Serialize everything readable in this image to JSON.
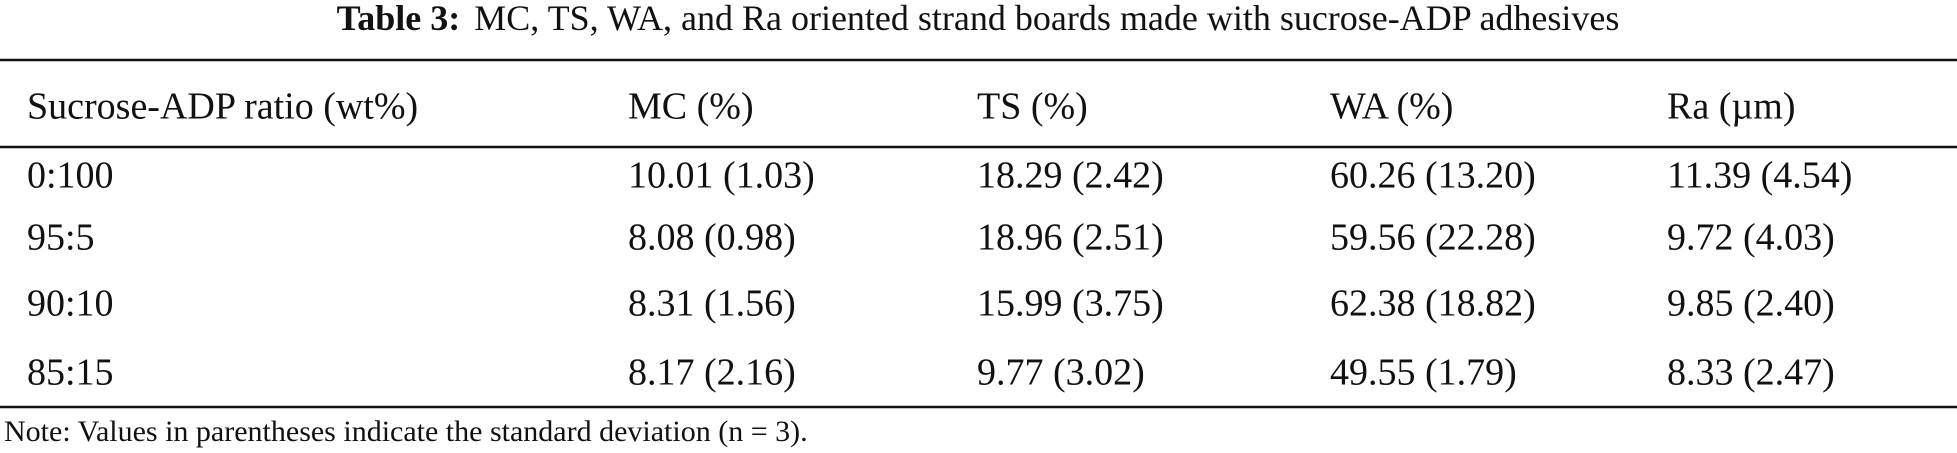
{
  "title_label": "Table 3:",
  "title_text": "MC, TS, WA, and Ra oriented strand boards made with sucrose-ADP adhesives",
  "table": {
    "header": [
      "Sucrose-ADP ratio (wt%)",
      "MC (%)",
      "TS (%)",
      "WA (%)",
      "Ra (µm)"
    ],
    "rows": [
      [
        "0:100",
        "10.01 (1.03)",
        "18.29 (2.42)",
        "60.26 (13.20)",
        "11.39 (4.54)"
      ],
      [
        "95:5",
        "8.08 (0.98)",
        "18.96 (2.51)",
        "59.56 (22.28)",
        "9.72 (4.03)"
      ],
      [
        "90:10",
        "8.31 (1.56)",
        "15.99 (3.75)",
        "62.38 (18.82)",
        "9.85 (2.40)"
      ],
      [
        "85:15",
        "8.17 (2.16)",
        "9.77 (3.02)",
        "49.55 (1.79)",
        "8.33 (2.47)"
      ]
    ]
  },
  "note": "Note: Values in parentheses indicate the standard deviation (n = 3)."
}
